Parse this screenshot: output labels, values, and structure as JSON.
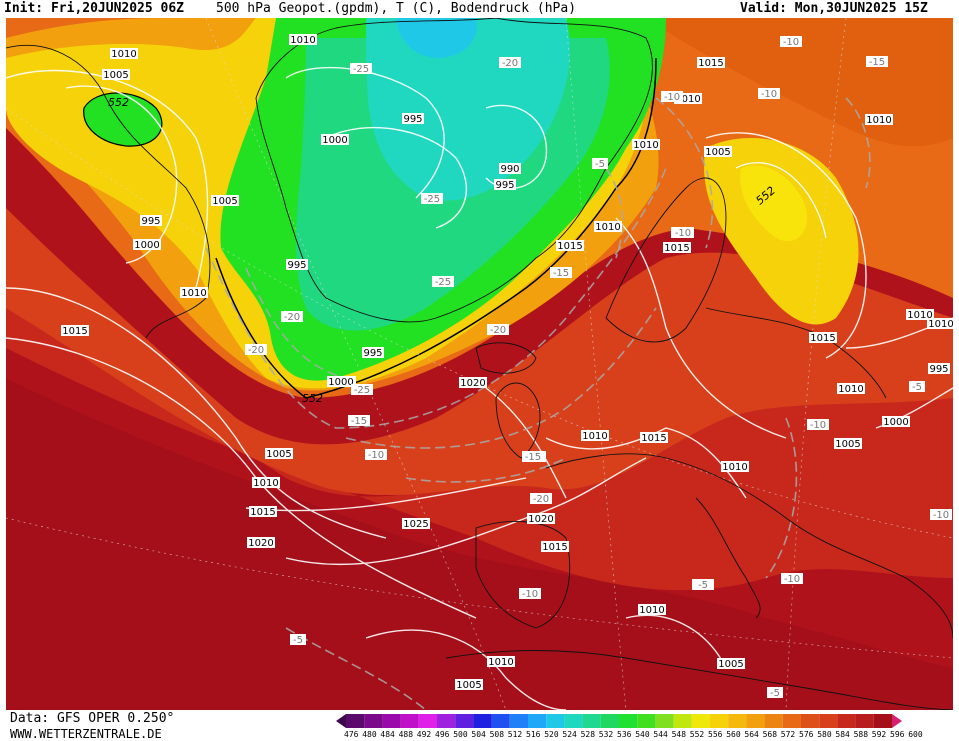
{
  "header": {
    "init": "Init: Fri,20JUN2025 06Z",
    "title": "500 hPa Geopot.(gpdm), T (C), Bodendruck (hPa)",
    "valid": "Valid: Mon,30JUN2025 15Z"
  },
  "footer": {
    "data_source": "Data: GFS OPER 0.250°",
    "url": "WWW.WETTERZENTRALE.DE"
  },
  "colors": {
    "ocean_dark_red": "#b0121c",
    "deep_red": "#a50f1a",
    "red": "#c8281c",
    "red_orange": "#d8401c",
    "orange": "#e86a16",
    "orange_yellow": "#f2a00e",
    "yellow": "#f5d20a",
    "yellow_green": "#c8e610",
    "green": "#22e022",
    "green_teal": "#20d880",
    "teal": "#20d8c0",
    "cyan": "#20c8e8"
  },
  "scale": {
    "labels": [
      "476",
      "480",
      "484",
      "488",
      "492",
      "496",
      "500",
      "504",
      "508",
      "512",
      "516",
      "520",
      "524",
      "528",
      "532",
      "536",
      "540",
      "544",
      "548",
      "552",
      "556",
      "560",
      "564",
      "568",
      "572",
      "576",
      "580",
      "584",
      "588",
      "592",
      "596",
      "600"
    ],
    "colors": [
      "#3a0a4a",
      "#5a0a6a",
      "#7a0a8a",
      "#9a0aaa",
      "#c010c8",
      "#e020e8",
      "#a020e0",
      "#6020e0",
      "#2020e0",
      "#2050f0",
      "#2080f8",
      "#20a8f8",
      "#20c8e8",
      "#20d8c0",
      "#20d890",
      "#20d860",
      "#20e030",
      "#40e020",
      "#80e020",
      "#c0e810",
      "#f0e80a",
      "#f5d20a",
      "#f5b80c",
      "#f2a00e",
      "#ec8412",
      "#e86a16",
      "#de501a",
      "#d8401c",
      "#c8281c",
      "#b81c1c",
      "#a50f1a",
      "#d82070"
    ]
  },
  "isobar_labels": [
    {
      "text": "1010"
    },
    {
      "text": "1005"
    },
    {
      "text": "552"
    },
    {
      "text": "995"
    },
    {
      "text": "1000"
    },
    {
      "text": "1010"
    },
    {
      "text": "1015"
    },
    {
      "text": "1005"
    },
    {
      "text": "1000"
    },
    {
      "text": "995"
    },
    {
      "text": "995"
    },
    {
      "text": "1000"
    },
    {
      "text": "995"
    },
    {
      "text": "1000"
    },
    {
      "text": "552"
    },
    {
      "text": "990"
    },
    {
      "text": "995"
    },
    {
      "text": "1005"
    },
    {
      "text": "1010"
    },
    {
      "text": "1015"
    },
    {
      "text": "1020"
    },
    {
      "text": "1010"
    },
    {
      "text": "1015"
    },
    {
      "text": "1015"
    },
    {
      "text": "1020"
    },
    {
      "text": "1025"
    },
    {
      "text": "1015"
    },
    {
      "text": "1020"
    },
    {
      "text": "1015"
    },
    {
      "text": "1010"
    },
    {
      "text": "1010"
    },
    {
      "text": "1010"
    },
    {
      "text": "1010"
    },
    {
      "text": "1015"
    },
    {
      "text": "1010"
    },
    {
      "text": "1010"
    },
    {
      "text": "1015"
    },
    {
      "text": "1005"
    },
    {
      "text": "552"
    },
    {
      "text": "1010"
    },
    {
      "text": "1010"
    },
    {
      "text": "1010"
    },
    {
      "text": "1005"
    },
    {
      "text": "1010"
    },
    {
      "text": "995"
    },
    {
      "text": "1000"
    },
    {
      "text": "1005"
    },
    {
      "text": "1010"
    },
    {
      "text": "1005"
    }
  ],
  "temp_labels": [
    {
      "text": "-25"
    },
    {
      "text": "-20"
    },
    {
      "text": "-25"
    },
    {
      "text": "-25"
    },
    {
      "text": "-20"
    },
    {
      "text": "-20"
    },
    {
      "text": "-25"
    },
    {
      "text": "-20"
    },
    {
      "text": "-15"
    },
    {
      "text": "-10"
    },
    {
      "text": "-15"
    },
    {
      "text": "-20"
    },
    {
      "text": "-15"
    },
    {
      "text": "-10"
    },
    {
      "text": "-10"
    },
    {
      "text": "-15"
    },
    {
      "text": "-10"
    },
    {
      "text": "-10"
    },
    {
      "text": "-10"
    },
    {
      "text": "-10"
    },
    {
      "text": "-10"
    },
    {
      "text": "-5"
    },
    {
      "text": "-5"
    },
    {
      "text": "-5"
    },
    {
      "text": "-10"
    },
    {
      "text": "-10"
    },
    {
      "text": "-5"
    },
    {
      "text": "-15"
    },
    {
      "text": "-10"
    },
    {
      "text": "-5"
    }
  ]
}
